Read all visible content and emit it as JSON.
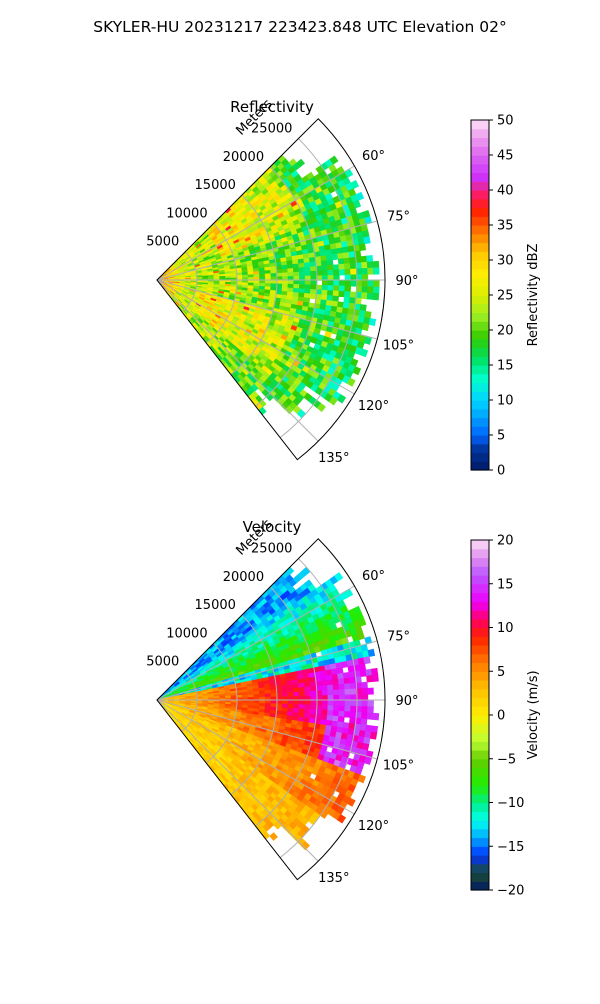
{
  "figure": {
    "suptitle": "SKYLER-HU  20231217  223423.848 UTC Elevation 02°"
  },
  "chart_data": [
    {
      "type": "heatmap",
      "title": "Reflectivity",
      "radial_axis_label": "Meters",
      "range_tick_labels": [
        "5000",
        "10000",
        "15000",
        "20000",
        "25000"
      ],
      "range_ticks": [
        5000,
        10000,
        15000,
        20000,
        25000
      ],
      "range_max_m": 28500,
      "azimuth_min_deg": 45,
      "azimuth_max_deg": 142,
      "azimuth_tick_labels": [
        "60°",
        "75°",
        "90°",
        "105°",
        "120°",
        "135°"
      ],
      "azimuth_ticks_deg": [
        60,
        75,
        90,
        105,
        120,
        135
      ],
      "colorbar": {
        "label": "Reflectivity dBZ",
        "min": 0,
        "max": 50,
        "tick_labels": [
          "0",
          "5",
          "10",
          "15",
          "20",
          "25",
          "30",
          "35",
          "40",
          "45",
          "50"
        ]
      },
      "colormap": [
        [
          0,
          "#001a66"
        ],
        [
          3,
          "#003399"
        ],
        [
          5,
          "#0066ff"
        ],
        [
          8,
          "#00aaff"
        ],
        [
          10,
          "#00d4ff"
        ],
        [
          13,
          "#00ffcc"
        ],
        [
          16,
          "#00e060"
        ],
        [
          19,
          "#33cc00"
        ],
        [
          22,
          "#99ee22"
        ],
        [
          25,
          "#ddee00"
        ],
        [
          28,
          "#ffee00"
        ],
        [
          31,
          "#ffc800"
        ],
        [
          34,
          "#ff7700"
        ],
        [
          37,
          "#ff2200"
        ],
        [
          39,
          "#ff1a4a"
        ],
        [
          42,
          "#cc33ff"
        ],
        [
          45,
          "#dd66ee"
        ],
        [
          48,
          "#f0a8f0"
        ],
        [
          50,
          "#fde4f8"
        ]
      ],
      "grid": true
    },
    {
      "type": "heatmap",
      "title": "Velocity",
      "radial_axis_label": "Meters",
      "range_tick_labels": [
        "5000",
        "10000",
        "15000",
        "20000",
        "25000"
      ],
      "range_ticks": [
        5000,
        10000,
        15000,
        20000,
        25000
      ],
      "range_max_m": 28500,
      "azimuth_min_deg": 45,
      "azimuth_max_deg": 142,
      "azimuth_tick_labels": [
        "60°",
        "75°",
        "90°",
        "105°",
        "120°",
        "135°"
      ],
      "azimuth_ticks_deg": [
        60,
        75,
        90,
        105,
        120,
        135
      ],
      "colorbar": {
        "label": "Velocity (m/s)",
        "min": -20,
        "max": 20,
        "tick_labels": [
          "−20",
          "−15",
          "−10",
          "−5",
          "0",
          "5",
          "10",
          "15",
          "20"
        ]
      },
      "colormap": [
        [
          -20,
          "#001a66"
        ],
        [
          -18,
          "#1a4d33"
        ],
        [
          -16,
          "#0033ff"
        ],
        [
          -14,
          "#00aaff"
        ],
        [
          -12,
          "#00ffee"
        ],
        [
          -10,
          "#00ee88"
        ],
        [
          -8,
          "#22ee00"
        ],
        [
          -5,
          "#66cc00"
        ],
        [
          -3,
          "#bbff33"
        ],
        [
          0,
          "#ffee00"
        ],
        [
          3,
          "#ffc000"
        ],
        [
          6,
          "#ff7a00"
        ],
        [
          9,
          "#ff2000"
        ],
        [
          11,
          "#ff0066"
        ],
        [
          13,
          "#ee00ff"
        ],
        [
          16,
          "#bb55ff"
        ],
        [
          18,
          "#e08ef0"
        ],
        [
          20,
          "#fde0f8"
        ]
      ],
      "grid": true
    }
  ]
}
